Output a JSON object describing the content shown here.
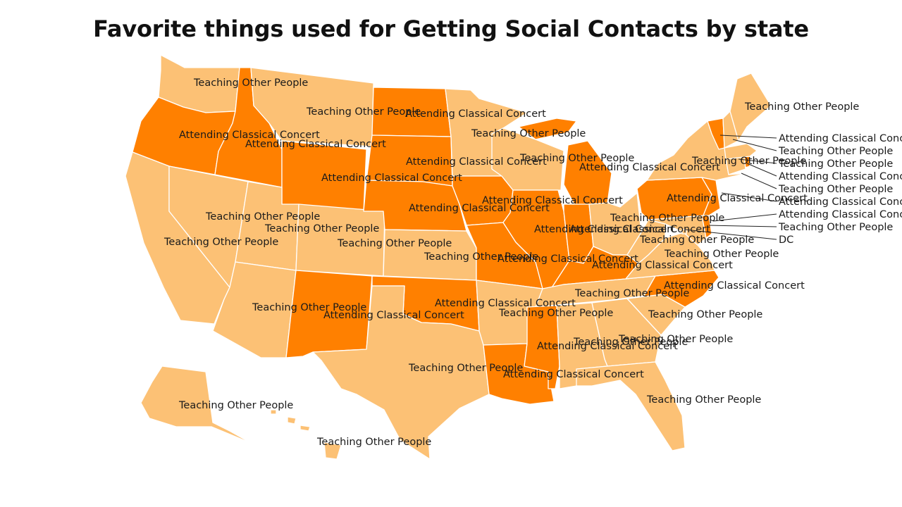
{
  "title": "Favorite things used for Getting Social Contacts by state",
  "colors": {
    "Attending Classical Concert": "#FF8000",
    "Teaching Other People": "#FCC175"
  },
  "states": {
    "WA": "Teaching Other People",
    "OR": "Attending Classical Concert",
    "CA": "Teaching Other People",
    "NV": "Teaching Other People",
    "ID": "Attending Classical Concert",
    "MT": "Teaching Other People",
    "WY": "Attending Classical Concert",
    "UT": "Teaching Other People",
    "AZ": "Teaching Other People",
    "CO": "Teaching Other People",
    "NM": "Attending Classical Concert",
    "ND": "Attending Classical Concert",
    "SD": "Attending Classical Concert",
    "NE": "Attending Classical Concert",
    "KS": "Teaching Other People",
    "OK": "Attending Classical Concert",
    "TX": "Teaching Other People",
    "MN": "Teaching Other People",
    "IA": "Attending Classical Concert",
    "MO": "Attending Classical Concert",
    "AR": "Teaching Other People",
    "LA": "Attending Classical Concert",
    "WI": "Teaching Other People",
    "IL": "Attending Classical Concert",
    "MI": "Attending Classical Concert",
    "IN": "Attending Classical Concert",
    "OH": "Teaching Other People",
    "KY": "Attending Classical Concert",
    "TN": "Teaching Other People",
    "MS": "Attending Classical Concert",
    "AL": "Teaching Other People",
    "GA": "Teaching Other People",
    "FL": "Teaching Other People",
    "SC": "Teaching Other People",
    "NC": "Attending Classical Concert",
    "VA": "Teaching Other People",
    "WV": "Teaching Other People",
    "PA": "Attending Classical Concert",
    "NY": "Teaching Other People",
    "VT": "Attending Classical Concert",
    "NH": "Teaching Other People",
    "ME": "Teaching Other People",
    "MA": "Teaching Other People",
    "RI": "Attending Classical Concert",
    "CT": "Teaching Other People",
    "NJ": "Attending Classical Concert",
    "DE": "Attending Classical Concert",
    "MD": "Teaching Other People",
    "DC": "DC",
    "AK": "Teaching Other People",
    "HI": "Teaching Other People"
  }
}
